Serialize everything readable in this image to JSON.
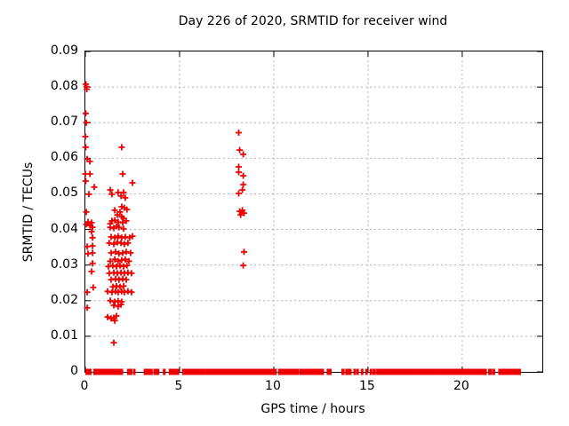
{
  "colors": {
    "marker": "#ee0000",
    "grid": "#b4b4b4",
    "axis": "#000000",
    "background": "#ffffff",
    "text": "#000000"
  },
  "chart_data": {
    "type": "scatter",
    "title": "Day 226 of 2020, SRMTID for receiver wind",
    "xlabel": "GPS time / hours",
    "ylabel": "SRMTID / TECUs",
    "xlim": [
      0,
      24.25
    ],
    "ylim": [
      0,
      0.09
    ],
    "grid": true,
    "legend": "none",
    "marker": {
      "shape": "plus",
      "color": "#ee0000",
      "size": 7
    },
    "xticks": {
      "values": [
        0,
        5,
        10,
        15,
        20
      ],
      "labels": [
        "0",
        "5",
        "10",
        "15",
        "20"
      ]
    },
    "yticks": {
      "values": [
        0,
        0.01,
        0.02,
        0.03,
        0.04,
        0.05,
        0.06,
        0.07,
        0.08,
        0.09
      ],
      "labels": [
        "0",
        "0.01",
        "0.02",
        "0.03",
        "0.04",
        "0.05",
        "0.06",
        "0.07",
        "0.08",
        "0.09"
      ]
    },
    "series": [
      {
        "name": "SRMTID",
        "points": [
          [
            0.03,
            0.0808
          ],
          [
            0.06,
            0.0801
          ],
          [
            0.08,
            0.0794
          ],
          [
            0.02,
            0.0726
          ],
          [
            0.05,
            0.07
          ],
          [
            0.0,
            0.0661
          ],
          [
            0.02,
            0.0631
          ],
          [
            0.1,
            0.0598
          ],
          [
            0.24,
            0.0591
          ],
          [
            0.0,
            0.0556
          ],
          [
            0.24,
            0.0556
          ],
          [
            0.02,
            0.0536
          ],
          [
            0.47,
            0.0519
          ],
          [
            0.19,
            0.0499
          ],
          [
            0.05,
            0.0449
          ],
          [
            0.14,
            0.0421
          ],
          [
            0.33,
            0.0419
          ],
          [
            0.05,
            0.0414
          ],
          [
            0.24,
            0.0411
          ],
          [
            0.38,
            0.0406
          ],
          [
            0.33,
            0.0394
          ],
          [
            0.38,
            0.0377
          ],
          [
            0.1,
            0.0352
          ],
          [
            0.38,
            0.0354
          ],
          [
            0.14,
            0.0332
          ],
          [
            0.38,
            0.0334
          ],
          [
            0.38,
            0.0305
          ],
          [
            0.33,
            0.0282
          ],
          [
            0.42,
            0.0237
          ],
          [
            0.1,
            0.0224
          ],
          [
            0.1,
            0.018
          ],
          [
            1.93,
            0.0631
          ],
          [
            1.98,
            0.0556
          ],
          [
            2.5,
            0.0531
          ],
          [
            1.32,
            0.0511
          ],
          [
            1.74,
            0.0504
          ],
          [
            2.03,
            0.0504
          ],
          [
            1.89,
            0.0494
          ],
          [
            2.12,
            0.0489
          ],
          [
            1.41,
            0.0499
          ],
          [
            1.56,
            0.0454
          ],
          [
            1.84,
            0.0449
          ],
          [
            1.7,
            0.0441
          ],
          [
            1.93,
            0.0464
          ],
          [
            2.07,
            0.0461
          ],
          [
            2.21,
            0.0456
          ],
          [
            1.41,
            0.0424
          ],
          [
            1.56,
            0.0426
          ],
          [
            1.74,
            0.0421
          ],
          [
            1.98,
            0.0419
          ],
          [
            2.17,
            0.0424
          ],
          [
            1.32,
            0.0416
          ],
          [
            1.93,
            0.0436
          ],
          [
            2.03,
            0.0431
          ],
          [
            1.32,
            0.0406
          ],
          [
            1.51,
            0.0404
          ],
          [
            1.65,
            0.0409
          ],
          [
            1.79,
            0.0406
          ],
          [
            2.03,
            0.0402
          ],
          [
            1.37,
            0.0379
          ],
          [
            1.56,
            0.0377
          ],
          [
            1.74,
            0.0381
          ],
          [
            1.93,
            0.0377
          ],
          [
            2.12,
            0.0379
          ],
          [
            2.35,
            0.0377
          ],
          [
            2.5,
            0.0381
          ],
          [
            1.27,
            0.0362
          ],
          [
            1.51,
            0.0359
          ],
          [
            1.7,
            0.0364
          ],
          [
            1.89,
            0.0362
          ],
          [
            2.07,
            0.0359
          ],
          [
            2.26,
            0.0362
          ],
          [
            1.37,
            0.0334
          ],
          [
            1.6,
            0.0337
          ],
          [
            1.79,
            0.0332
          ],
          [
            1.98,
            0.0334
          ],
          [
            2.17,
            0.0337
          ],
          [
            2.4,
            0.0334
          ],
          [
            1.32,
            0.0311
          ],
          [
            1.56,
            0.0316
          ],
          [
            1.74,
            0.0311
          ],
          [
            1.93,
            0.0314
          ],
          [
            2.12,
            0.0316
          ],
          [
            2.31,
            0.0311
          ],
          [
            1.22,
            0.0296
          ],
          [
            1.46,
            0.0299
          ],
          [
            1.65,
            0.0296
          ],
          [
            1.84,
            0.0299
          ],
          [
            2.03,
            0.0296
          ],
          [
            2.21,
            0.0299
          ],
          [
            1.27,
            0.0277
          ],
          [
            1.51,
            0.0279
          ],
          [
            1.7,
            0.0277
          ],
          [
            1.89,
            0.0279
          ],
          [
            2.07,
            0.0277
          ],
          [
            2.26,
            0.0279
          ],
          [
            2.45,
            0.0277
          ],
          [
            1.37,
            0.0259
          ],
          [
            1.6,
            0.0261
          ],
          [
            1.79,
            0.0259
          ],
          [
            1.98,
            0.0261
          ],
          [
            2.17,
            0.0259
          ],
          [
            1.46,
            0.0239
          ],
          [
            1.65,
            0.0241
          ],
          [
            1.84,
            0.0239
          ],
          [
            2.03,
            0.0241
          ],
          [
            1.18,
            0.0226
          ],
          [
            1.41,
            0.0224
          ],
          [
            1.6,
            0.0226
          ],
          [
            1.74,
            0.0224
          ],
          [
            1.93,
            0.0226
          ],
          [
            2.07,
            0.0224
          ],
          [
            2.26,
            0.0226
          ],
          [
            2.45,
            0.0224
          ],
          [
            1.32,
            0.02
          ],
          [
            1.56,
            0.0197
          ],
          [
            1.74,
            0.0199
          ],
          [
            1.93,
            0.0197
          ],
          [
            1.51,
            0.0187
          ],
          [
            1.74,
            0.0184
          ],
          [
            1.89,
            0.0189
          ],
          [
            1.65,
            0.0157
          ],
          [
            1.37,
            0.015
          ],
          [
            1.51,
            0.0152
          ],
          [
            1.18,
            0.0154
          ],
          [
            1.56,
            0.0144
          ],
          [
            1.51,
            0.0082
          ],
          [
            8.14,
            0.0672
          ],
          [
            8.19,
            0.0623
          ],
          [
            8.38,
            0.0611
          ],
          [
            8.14,
            0.0576
          ],
          [
            8.14,
            0.0561
          ],
          [
            8.38,
            0.0551
          ],
          [
            8.38,
            0.0526
          ],
          [
            8.33,
            0.0511
          ],
          [
            8.14,
            0.0501
          ],
          [
            8.19,
            0.0451
          ],
          [
            8.33,
            0.0454
          ],
          [
            8.42,
            0.0446
          ],
          [
            8.24,
            0.0441
          ],
          [
            8.42,
            0.0337
          ],
          [
            8.38,
            0.0299
          ]
        ]
      }
    ],
    "zero_band_segments": [
      [
        0.05,
        0.28
      ],
      [
        0.47,
        1.96
      ],
      [
        2.26,
        2.31
      ],
      [
        2.39,
        2.45
      ],
      [
        2.58,
        2.62
      ],
      [
        3.14,
        3.53
      ],
      [
        3.66,
        3.88
      ],
      [
        4.16,
        4.22
      ],
      [
        4.47,
        4.66
      ],
      [
        4.72,
        4.94
      ],
      [
        5.18,
        5.88
      ],
      [
        5.9,
        5.95
      ],
      [
        6.0,
        6.05
      ],
      [
        6.1,
        6.15
      ],
      [
        6.19,
        6.24
      ],
      [
        6.29,
        6.34
      ],
      [
        6.43,
        6.48
      ],
      [
        6.53,
        6.57
      ],
      [
        6.62,
        6.67
      ],
      [
        6.72,
        6.77
      ],
      [
        6.86,
        7.65
      ],
      [
        7.7,
        8.22
      ],
      [
        8.26,
        10.11
      ],
      [
        10.28,
        11.29
      ],
      [
        11.4,
        12.22
      ],
      [
        12.31,
        12.62
      ],
      [
        12.85,
        12.9
      ],
      [
        12.97,
        13.02
      ],
      [
        13.63,
        13.71
      ],
      [
        13.84,
        13.95
      ],
      [
        14.03,
        14.08
      ],
      [
        14.27,
        14.31
      ],
      [
        14.42,
        14.47
      ],
      [
        14.66,
        14.71
      ],
      [
        14.9,
        14.94
      ],
      [
        15.13,
        15.18
      ],
      [
        15.29,
        15.37
      ],
      [
        15.48,
        15.92
      ],
      [
        16.0,
        16.13
      ],
      [
        16.21,
        16.55
      ],
      [
        16.63,
        16.87
      ],
      [
        16.95,
        17.18
      ],
      [
        17.26,
        17.57
      ],
      [
        17.65,
        18.2
      ],
      [
        18.28,
        18.75
      ],
      [
        18.83,
        19.46
      ],
      [
        19.5,
        19.77
      ],
      [
        19.82,
        19.93
      ],
      [
        20.0,
        20.05
      ],
      [
        20.13,
        20.18
      ],
      [
        20.24,
        20.71
      ],
      [
        20.79,
        21.02
      ],
      [
        21.1,
        21.26
      ],
      [
        21.42,
        21.54
      ],
      [
        21.65,
        21.7
      ],
      [
        21.96,
        22.28
      ],
      [
        22.36,
        22.67
      ],
      [
        22.75,
        22.83
      ],
      [
        22.91,
        23.07
      ]
    ]
  }
}
